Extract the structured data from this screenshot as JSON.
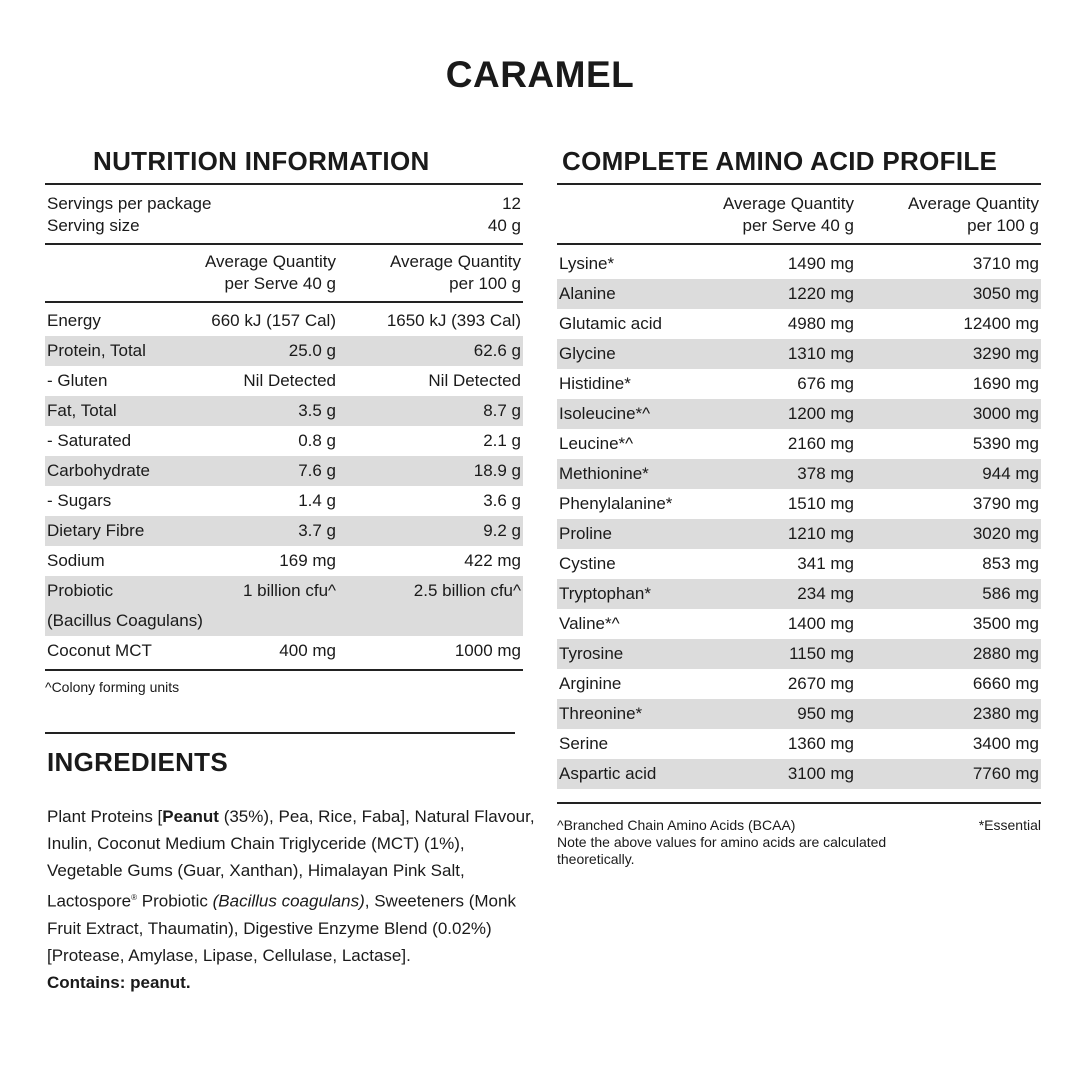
{
  "title": "CARAMEL",
  "nutrition": {
    "heading": "NUTRITION INFORMATION",
    "servings_label": "Servings per package",
    "servings_value": "12",
    "size_label": "Serving size",
    "size_value": "40 g",
    "col1": [
      "Average Quantity",
      "per Serve 40 g"
    ],
    "col2": [
      "Average Quantity",
      "per 100 g"
    ],
    "rows": [
      {
        "name": "Energy",
        "serve": "660 kJ (157 Cal)",
        "per100": "1650 kJ (393 Cal)"
      },
      {
        "name": "Protein, Total",
        "serve": "25.0 g",
        "per100": "62.6 g"
      },
      {
        "name": "- Gluten",
        "serve": "Nil Detected",
        "per100": "Nil Detected"
      },
      {
        "name": "Fat, Total",
        "serve": "3.5 g",
        "per100": "8.7 g"
      },
      {
        "name": "- Saturated",
        "serve": "0.8 g",
        "per100": "2.1 g"
      },
      {
        "name": "Carbohydrate",
        "serve": "7.6 g",
        "per100": "18.9 g"
      },
      {
        "name": "- Sugars",
        "serve": "1.4 g",
        "per100": "3.6 g"
      },
      {
        "name": "Dietary Fibre",
        "serve": "3.7 g",
        "per100": "9.2 g"
      },
      {
        "name": "Sodium",
        "serve": "169 mg",
        "per100": "422 mg"
      },
      {
        "name": "Probiotic",
        "name2": "(Bacillus Coagulans)",
        "serve": "1 billion cfu^",
        "per100": "2.5 billion cfu^"
      },
      {
        "name": "Coconut MCT",
        "serve": "400 mg",
        "per100": "1000 mg"
      }
    ],
    "footnote": "^Colony forming units"
  },
  "ingredients": {
    "heading": "INGREDIENTS",
    "segments": [
      {
        "t": "Plant Proteins [",
        "s": "n"
      },
      {
        "t": "Peanut",
        "s": "b"
      },
      {
        "t": " (35%), Pea, Rice, Faba], Natural Flavour, Inulin, Coconut Medium Chain Triglyceride (MCT) (1%), Vegetable Gums (Guar, Xanthan), Himalayan Pink Salt,  Lactospore",
        "s": "n"
      },
      {
        "t": "®",
        "s": "sup"
      },
      {
        "t": " Probiotic ",
        "s": "n"
      },
      {
        "t": "(Bacillus coagulans)",
        "s": "i"
      },
      {
        "t": ", Sweeteners (Monk Fruit Extract, Thaumatin), Digestive Enzyme Blend (0.02%) [Protease, Amylase, Lipase, Cellulase, Lactase].",
        "s": "n"
      }
    ],
    "contains": "Contains: peanut."
  },
  "amino": {
    "heading": "COMPLETE AMINO ACID PROFILE",
    "col1": [
      "Average Quantity",
      "per Serve 40 g"
    ],
    "col2": [
      "Average Quantity",
      "per 100 g"
    ],
    "rows": [
      {
        "name": "Lysine*",
        "serve": "1490 mg",
        "per100": "3710 mg"
      },
      {
        "name": "Alanine",
        "serve": "1220 mg",
        "per100": "3050 mg"
      },
      {
        "name": "Glutamic acid",
        "serve": "4980 mg",
        "per100": "12400 mg"
      },
      {
        "name": "Glycine",
        "serve": "1310 mg",
        "per100": "3290 mg"
      },
      {
        "name": "Histidine*",
        "serve": "676 mg",
        "per100": "1690 mg"
      },
      {
        "name": "Isoleucine*^",
        "serve": "1200 mg",
        "per100": "3000 mg"
      },
      {
        "name": "Leucine*^",
        "serve": "2160 mg",
        "per100": "5390 mg"
      },
      {
        "name": "Methionine*",
        "serve": "378 mg",
        "per100": "944 mg"
      },
      {
        "name": "Phenylalanine*",
        "serve": "1510 mg",
        "per100": "3790 mg"
      },
      {
        "name": "Proline",
        "serve": "1210 mg",
        "per100": "3020 mg"
      },
      {
        "name": "Cystine",
        "serve": "341 mg",
        "per100": "853 mg"
      },
      {
        "name": "Tryptophan*",
        "serve": "234 mg",
        "per100": "586 mg"
      },
      {
        "name": "Valine*^",
        "serve": "1400 mg",
        "per100": "3500 mg"
      },
      {
        "name": "Tyrosine",
        "serve": "1150 mg",
        "per100": "2880 mg"
      },
      {
        "name": "Arginine",
        "serve": "2670 mg",
        "per100": "6660 mg"
      },
      {
        "name": "Threonine*",
        "serve": "950 mg",
        "per100": "2380 mg"
      },
      {
        "name": "Serine",
        "serve": "1360 mg",
        "per100": "3400 mg"
      },
      {
        "name": "Aspartic acid",
        "serve": "3100 mg",
        "per100": "7760 mg"
      }
    ],
    "footnote_bcaa": "^Branched Chain Amino Acids (BCAA)",
    "footnote_essential": "*Essential",
    "note": "Note the above values for amino acids are calculated theoretically."
  }
}
